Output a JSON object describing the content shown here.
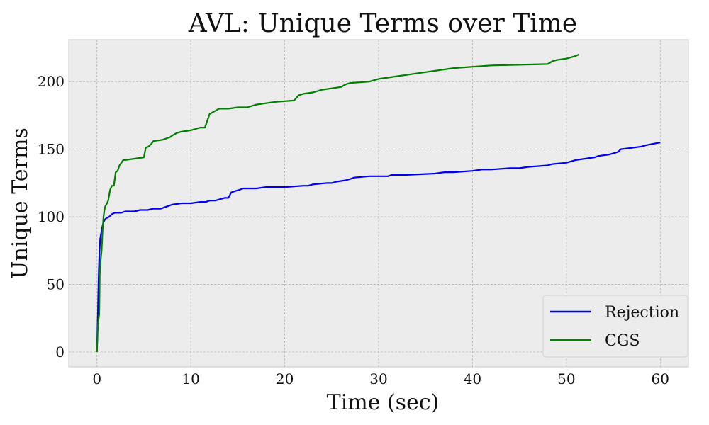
{
  "chart_data": {
    "type": "line",
    "title": "AVL: Unique Terms over Time",
    "xlabel": "Time (sec)",
    "ylabel": "Unique Terms",
    "xlim": [
      -3,
      63
    ],
    "ylim": [
      -11,
      231
    ],
    "xticks": [
      0,
      10,
      20,
      30,
      40,
      50,
      60
    ],
    "yticks": [
      0,
      50,
      100,
      150,
      200
    ],
    "grid": true,
    "grid_style": "dashed",
    "legend_position": "lower-right",
    "background_color": "#ececec",
    "series": [
      {
        "name": "Rejection",
        "color": "#0000ee",
        "x": [
          0,
          0.05,
          0.1,
          0.15,
          0.2,
          0.25,
          0.3,
          0.35,
          0.45,
          0.55,
          0.7,
          0.85,
          1.0,
          1.3,
          1.6,
          1.9,
          2.2,
          2.6,
          3.0,
          3.5,
          4.0,
          4.6,
          5.0,
          5.4,
          6.0,
          6.8,
          7.2,
          7.6,
          8.0,
          9.0,
          10.0,
          11.0,
          11.6,
          12.0,
          12.6,
          13.6,
          14.0,
          14.3,
          14.7,
          15.2,
          15.6,
          17.0,
          18.0,
          20.0,
          22.0,
          22.5,
          23.0,
          24.5,
          25.0,
          25.5,
          26.5,
          27.0,
          27.4,
          29.0,
          31.0,
          31.4,
          33.0,
          36.0,
          37.0,
          38.0,
          40.0,
          41.0,
          42.0,
          44.0,
          45.0,
          46.0,
          48.0,
          48.5,
          50.0,
          50.5,
          51.0,
          52.0,
          53.0,
          53.4,
          54.5,
          55.0,
          55.5,
          55.8,
          57.0,
          58.0,
          58.5,
          60.0
        ],
        "y": [
          0,
          15,
          30,
          45,
          60,
          70,
          78,
          84,
          88,
          92,
          96,
          98,
          99,
          100,
          102,
          103,
          103,
          103,
          104,
          104,
          104,
          105,
          105,
          105,
          106,
          106,
          107,
          108,
          109,
          110,
          110,
          111,
          111,
          112,
          112,
          114,
          114,
          118,
          119,
          120,
          121,
          121,
          122,
          122,
          123,
          123,
          124,
          125,
          125,
          126,
          127,
          128,
          129,
          130,
          130,
          131,
          131,
          132,
          133,
          133,
          134,
          135,
          135,
          136,
          136,
          137,
          138,
          139,
          140,
          141,
          142,
          143,
          144,
          145,
          146,
          147,
          148,
          150,
          151,
          152,
          153,
          155
        ]
      },
      {
        "name": "CGS",
        "color": "#007f00",
        "x": [
          0,
          0.05,
          0.1,
          0.2,
          0.25,
          0.3,
          0.35,
          0.4,
          0.5,
          0.6,
          0.7,
          0.8,
          0.9,
          1.0,
          1.2,
          1.4,
          1.6,
          1.8,
          2.0,
          2.2,
          2.4,
          2.6,
          2.8,
          3.0,
          4.0,
          5.0,
          5.2,
          5.5,
          5.8,
          6.0,
          7.0,
          7.4,
          7.8,
          8.0,
          8.5,
          9.0,
          10.0,
          10.5,
          11.0,
          11.5,
          12.0,
          12.5,
          13.0,
          14.0,
          15.0,
          16.0,
          16.5,
          17.0,
          18.0,
          19.0,
          21.0,
          21.5,
          22.0,
          23.0,
          23.5,
          24.0,
          25.0,
          26.0,
          26.5,
          27.0,
          29.0,
          30.0,
          31.0,
          34.0,
          35.0,
          38.0,
          42.0,
          48.0,
          48.5,
          49.0,
          50.0,
          50.5,
          51.0,
          51.3
        ],
        "y": [
          0,
          10,
          20,
          26,
          28,
          58,
          62,
          68,
          75,
          90,
          100,
          105,
          108,
          109,
          112,
          120,
          123,
          123,
          133,
          134,
          138,
          140,
          142,
          142,
          143,
          144,
          151,
          152,
          154,
          156,
          157,
          158,
          159,
          160,
          162,
          163,
          164,
          165,
          166,
          166,
          176,
          178,
          180,
          180,
          181,
          181,
          182,
          183,
          184,
          185,
          186,
          190,
          191,
          192,
          193,
          194,
          195,
          196,
          198,
          199,
          200,
          202,
          203,
          206,
          207,
          210,
          212,
          213,
          215,
          216,
          217,
          218,
          219,
          220
        ]
      }
    ]
  }
}
